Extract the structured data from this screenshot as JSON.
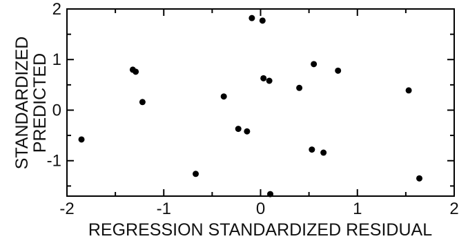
{
  "chart_data": {
    "type": "scatter",
    "title": "",
    "xlabel": "REGRESSION STANDARDIZED RESIDUAL",
    "ylabel_lines": [
      "STANDARDIZED",
      "PREDICTED"
    ],
    "xlim": [
      -2,
      2
    ],
    "ylim": [
      -1.7,
      2
    ],
    "x_ticks": [
      -2,
      -1,
      0,
      1,
      2
    ],
    "x_tick_labels": [
      "-2",
      "-1",
      "0",
      "1",
      "2"
    ],
    "y_ticks": [
      2,
      1,
      0,
      -1
    ],
    "y_tick_labels": [
      "2",
      "1",
      "0",
      "-1"
    ],
    "grid": false,
    "series": [
      {
        "points": [
          {
            "x": -1.85,
            "y": -0.58
          },
          {
            "x": -1.32,
            "y": 0.8
          },
          {
            "x": -1.29,
            "y": 0.76
          },
          {
            "x": -1.22,
            "y": 0.16
          },
          {
            "x": -0.67,
            "y": -1.26
          },
          {
            "x": -0.38,
            "y": 0.27
          },
          {
            "x": -0.23,
            "y": -0.37
          },
          {
            "x": -0.14,
            "y": -0.42
          },
          {
            "x": -0.09,
            "y": 1.82
          },
          {
            "x": 0.02,
            "y": 1.77
          },
          {
            "x": 0.03,
            "y": 0.63
          },
          {
            "x": 0.09,
            "y": 0.58
          },
          {
            "x": 0.1,
            "y": -1.66
          },
          {
            "x": 0.4,
            "y": 0.44
          },
          {
            "x": 0.53,
            "y": -0.78
          },
          {
            "x": 0.55,
            "y": 0.91
          },
          {
            "x": 0.65,
            "y": -0.84
          },
          {
            "x": 0.8,
            "y": 0.78
          },
          {
            "x": 1.53,
            "y": 0.39
          },
          {
            "x": 1.64,
            "y": -1.35
          }
        ]
      }
    ],
    "marker_color": "#000000"
  }
}
